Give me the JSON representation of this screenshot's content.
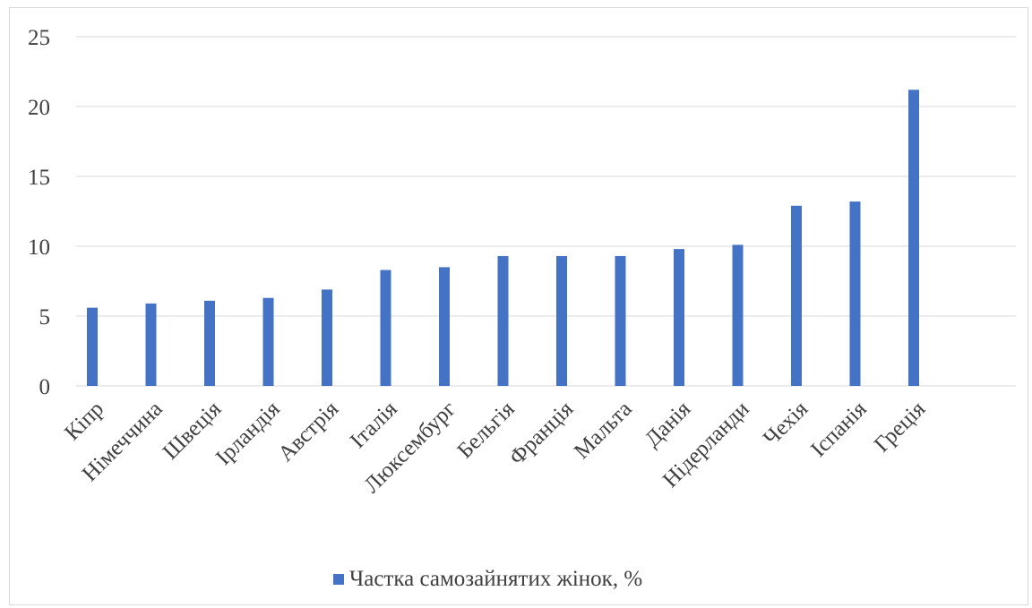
{
  "colors": {
    "bar": "#4472c4",
    "grid": "#d9d9d9",
    "text": "#404040"
  },
  "chart_data": {
    "type": "bar",
    "categories": [
      "Кіпр",
      "Німеччина",
      "Швеція",
      "Ірландія",
      "Австрія",
      "Італія",
      "Люксембург",
      "Бельгія",
      "Франція",
      "Мальта",
      "Данія",
      "Нідерланди",
      "Чехія",
      "Іспанія",
      "Греція"
    ],
    "series": [
      {
        "name": "Частка самозайнятих жінок, %",
        "values": [
          5.6,
          5.9,
          6.1,
          6.3,
          6.9,
          8.3,
          8.5,
          9.3,
          9.3,
          9.3,
          9.8,
          10.1,
          12.9,
          13.2,
          21.2
        ]
      }
    ],
    "ylim": [
      0,
      25
    ],
    "yticks": [
      "0",
      "5",
      "10",
      "15",
      "20",
      "25"
    ],
    "grid": true,
    "legend_position": "bottom"
  }
}
